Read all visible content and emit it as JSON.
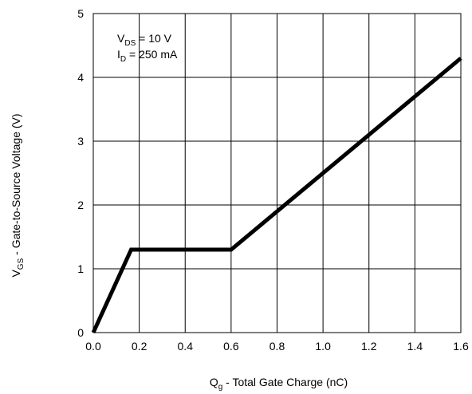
{
  "chart_data": {
    "type": "line",
    "title": "",
    "xlabel": {
      "main": "Q",
      "sub": "g",
      "rest": " - Total Gate Charge (nC)"
    },
    "ylabel": {
      "main": "V",
      "sub": "GS",
      "rest": " - Gate-to-Source Voltage (V)"
    },
    "xlim": [
      0,
      1.6
    ],
    "ylim": [
      0,
      5
    ],
    "x_ticks": [
      "0.0",
      "0.2",
      "0.4",
      "0.6",
      "0.8",
      "1.0",
      "1.2",
      "1.4",
      "1.6"
    ],
    "y_ticks": [
      "0",
      "1",
      "2",
      "3",
      "4",
      "5"
    ],
    "grid": true,
    "annotation": {
      "line1": {
        "main": "V",
        "sub": "DS",
        "rest": " = 10 V"
      },
      "line2": {
        "main": "I",
        "sub": "D",
        "rest": " = 250 mA"
      }
    },
    "series": [
      {
        "points": [
          [
            0.0,
            0.0
          ],
          [
            0.165,
            1.3
          ],
          [
            0.6,
            1.3
          ],
          [
            1.6,
            4.3
          ]
        ],
        "color": "#000000"
      }
    ]
  }
}
